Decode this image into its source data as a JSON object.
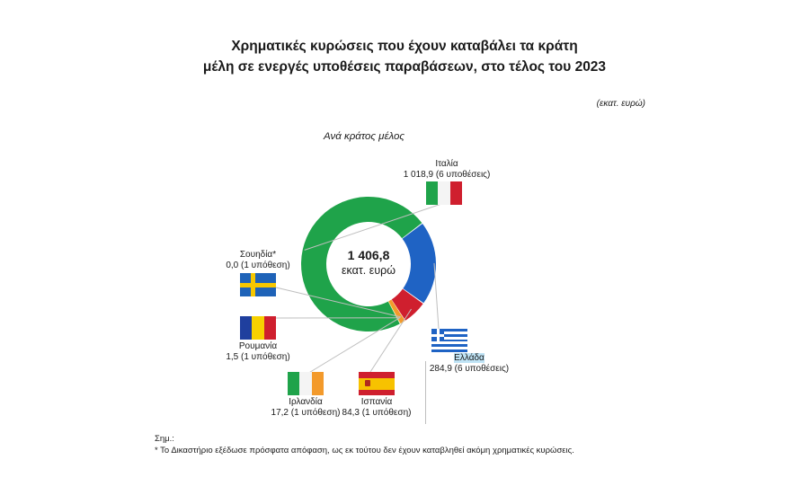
{
  "title_line1": "Χρηματικές κυρώσεις που έχουν καταβάλει τα κράτη",
  "title_line2": "μέλη σε ενεργές υποθέσεις παραβάσεων, στο τέλος του 2023",
  "unit_note": "(εκατ. ευρώ)",
  "subtitle": "Ανά κράτος μέλος",
  "center": {
    "value": "1 406,8",
    "unit": "εκατ. ευρώ"
  },
  "notes": {
    "heading": "Σημ.:",
    "text": "* Το Δικαστήριο εξέδωσε πρόσφατα απόφαση, ως εκ τούτου δεν έχουν καταβληθεί ακόμη χρηματικές κυρώσεις."
  },
  "colors": {
    "italy": "#1fa34a",
    "greece": "#1f63c4",
    "spain": "#cf1f2e",
    "ireland": "#f39a2b",
    "romania": "#e8c200",
    "sweden": "#7b7b7b",
    "leader": "#bfbfbf"
  },
  "chart_data": {
    "type": "pie",
    "donut": true,
    "total": 1406.8,
    "unit": "εκατ. ευρώ",
    "slices": [
      {
        "name": "Ιταλία",
        "value": 1018.9,
        "value_label": "1 018,9 (6 υποθέσεις)"
      },
      {
        "name": "Ελλάδα",
        "value": 284.9,
        "value_label": "284,9 (6 υποθέσεις)"
      },
      {
        "name": "Ισπανία",
        "value": 84.3,
        "value_label": "84,3 (1 υπόθεση)"
      },
      {
        "name": "Ιρλανδία",
        "value": 17.2,
        "value_label": "17,2 (1 υπόθεση)"
      },
      {
        "name": "Ρουμανία",
        "value": 1.5,
        "value_label": "1,5 (1 υπόθεση)"
      },
      {
        "name": "Σουηδία*",
        "value": 0.0,
        "value_label": "0,0 (1 υπόθεση)"
      }
    ]
  }
}
